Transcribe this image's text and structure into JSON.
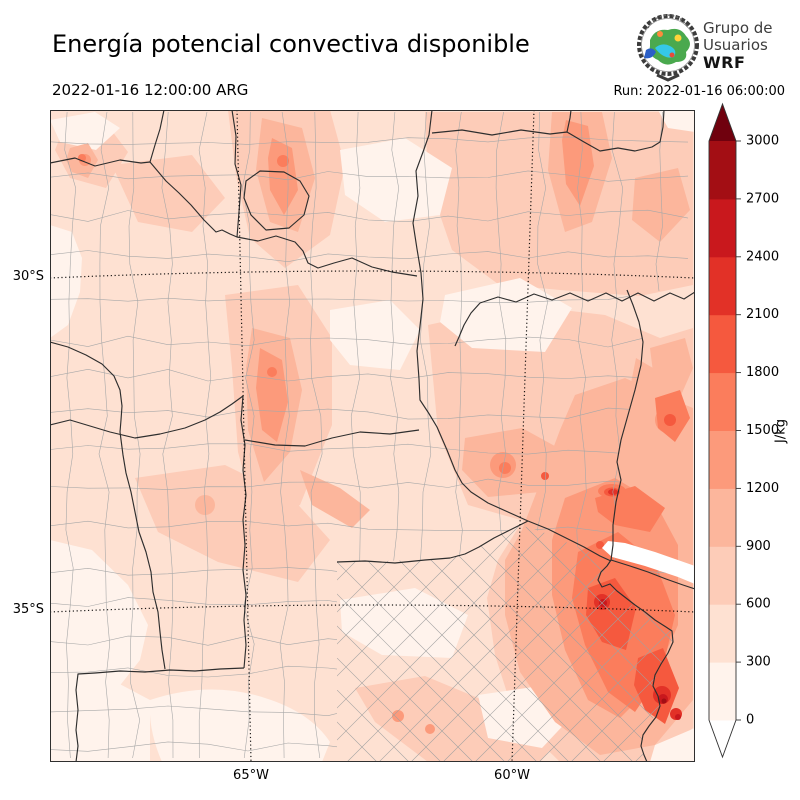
{
  "header": {
    "title": "Energía potencial convectiva disponible",
    "valid_time": "2022-01-16 12:00:00 ARG",
    "run_label": "Run: 2022-01-16 06:00:00"
  },
  "logo": {
    "line1": "Grupo de",
    "line2": "Usuarios",
    "line3": "WRF"
  },
  "map": {
    "y_ticks": [
      {
        "label": "30°S"
      },
      {
        "label": "35°S"
      }
    ],
    "x_ticks": [
      {
        "label": "65°W"
      },
      {
        "label": "60°W"
      }
    ]
  },
  "colorbar": {
    "unit": "J/kg",
    "ticks": [
      "0",
      "300",
      "600",
      "900",
      "1200",
      "1500",
      "1800",
      "2100",
      "2400",
      "2700",
      "3000"
    ],
    "levels": [
      0,
      300,
      600,
      900,
      1200,
      1500,
      1800,
      2100,
      2400,
      2700,
      3000
    ],
    "colors": [
      "#fff3ec",
      "#fee1d2",
      "#fdccb8",
      "#fcb69c",
      "#fc9a7b",
      "#fb7d5c",
      "#f5593e",
      "#e23127",
      "#c9181d",
      "#a30e14"
    ],
    "under": "#ffffff",
    "over": "#70010e"
  }
}
